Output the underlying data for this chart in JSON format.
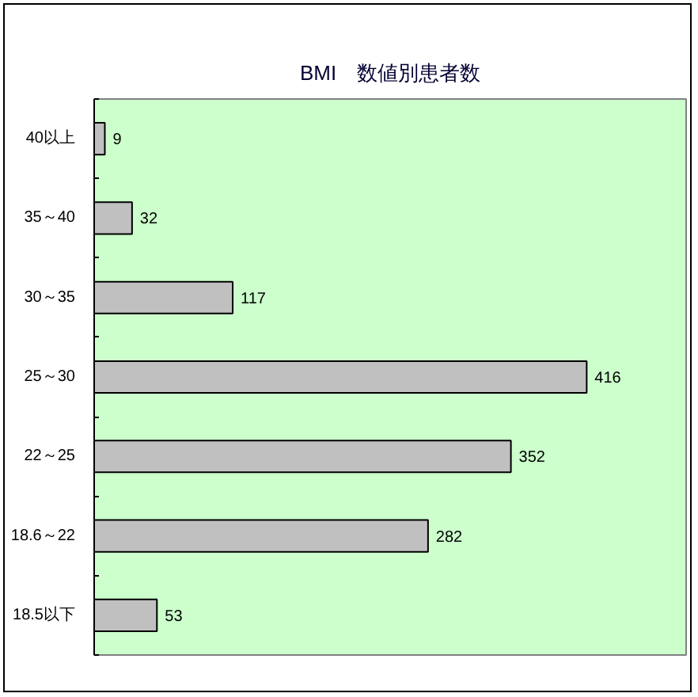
{
  "chart_data": {
    "type": "bar",
    "title": "BMI　数値別患者数",
    "orientation": "horizontal",
    "categories": [
      "40以上",
      "35～40",
      "30～35",
      "25～30",
      "22～25",
      "18.6～22",
      "18.5以下"
    ],
    "values": [
      9,
      32,
      117,
      416,
      352,
      282,
      53
    ],
    "color": "#c0c0c0",
    "xlim": [
      0,
      500
    ],
    "tick_labels": "y",
    "data_labels": true
  }
}
